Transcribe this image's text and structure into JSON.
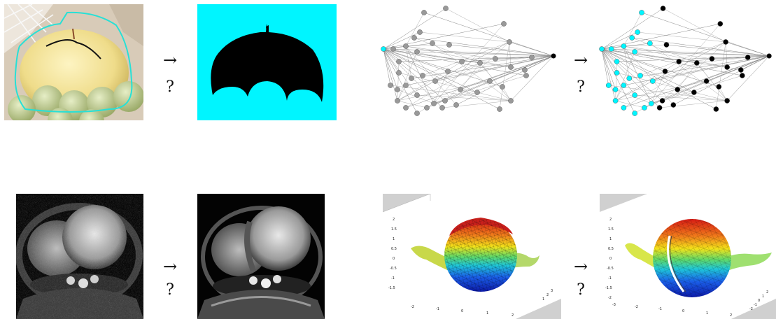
{
  "figure": {
    "arrow_glyph": "→",
    "question_glyph": "?",
    "rows": [
      {
        "left_pair": {
          "input": "apple-photo-with-scribbles",
          "output": "binary-segmentation-mask"
        },
        "right_pair": {
          "input": "graph-gray-nodes",
          "output": "graph-colored-nodes"
        }
      },
      {
        "left_pair": {
          "input": "noisy-cardiac-mri",
          "output": "denoised-cardiac-mri"
        },
        "right_pair": {
          "input": "noisy-teapot-mesh",
          "output": "smoothed-teapot-mesh"
        }
      }
    ],
    "mesh_axis": {
      "z_ticks": [
        "2",
        "1.5",
        "1",
        "0.5",
        "0",
        "-0.5",
        "-1",
        "-1.5",
        "-2"
      ],
      "x_ticks": [
        "-3",
        "-2",
        "-1",
        "0",
        "1",
        "2",
        "3"
      ],
      "y_ticks": [
        "-2",
        "-1",
        "0",
        "1",
        "2",
        "3"
      ]
    },
    "colors": {
      "cyan": "#00f5ff",
      "graph_gray": "#999999",
      "graph_black": "#000000",
      "plot_bg": "#d0d0d0"
    }
  }
}
